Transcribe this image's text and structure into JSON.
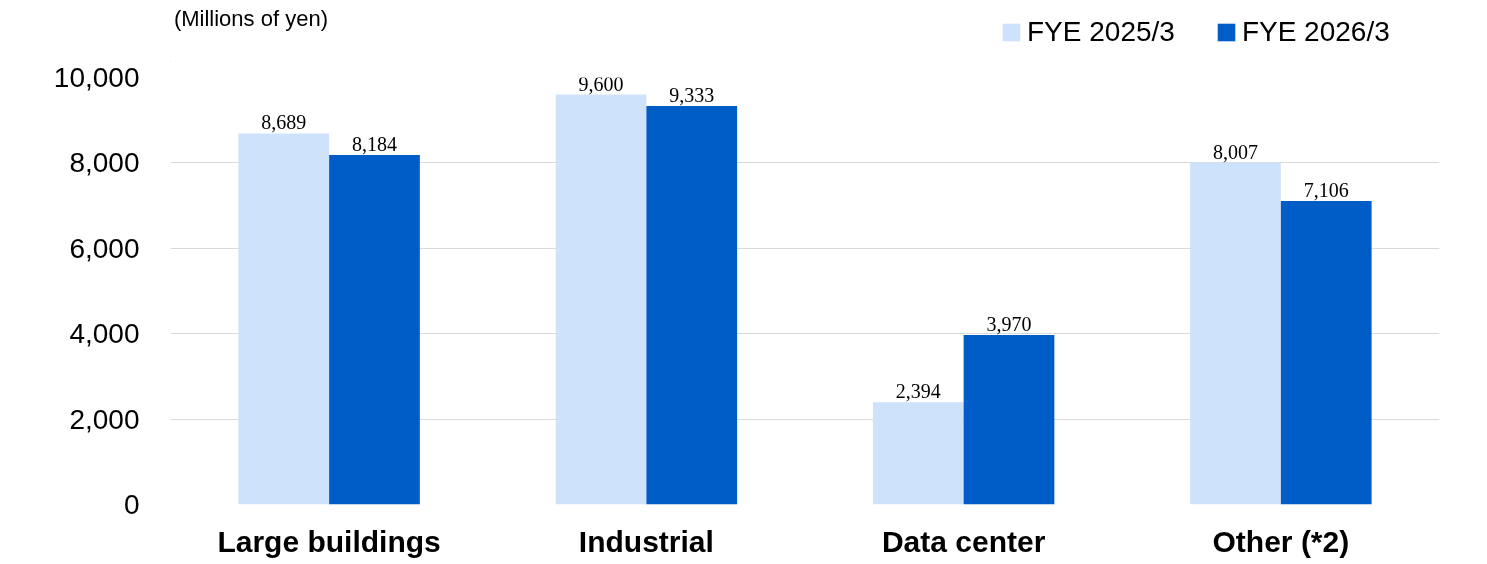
{
  "chart_data": {
    "type": "bar",
    "ylabel": "(Millions of yen)",
    "categories": [
      "Large buildings",
      "Industrial",
      "Data center",
      "Other (*2)"
    ],
    "series": [
      {
        "name": "FYE 2025/3",
        "color": "#cfe2fb",
        "values": [
          8689,
          9600,
          2394,
          8007
        ],
        "value_labels": [
          "8,689",
          "9,600",
          "2,394",
          "8,007"
        ]
      },
      {
        "name": "FYE 2026/3",
        "color": "#005dc8",
        "values": [
          8184,
          9333,
          3970,
          7106
        ],
        "value_labels": [
          "8,184",
          "9,333",
          "3,970",
          "7,106"
        ]
      }
    ],
    "ylim": [
      0,
      10000
    ],
    "yticks": [
      0,
      {
        "value": 2000,
        "label": "2,000"
      },
      {
        "value": 4000,
        "label": "4,000"
      },
      {
        "value": 6000,
        "label": "6,000"
      },
      {
        "value": 8000,
        "label": "8,000"
      },
      {
        "value": 10000,
        "label": "10,000"
      }
    ],
    "grid": "y",
    "legend": "top right"
  }
}
